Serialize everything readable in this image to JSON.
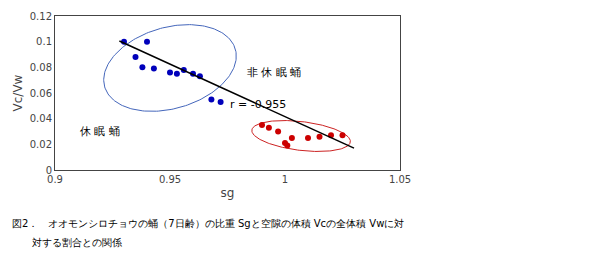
{
  "chart_data": {
    "type": "scatter",
    "xlabel": "sg",
    "ylabel": "Vc/Vw",
    "series": [
      {
        "type": "scatter",
        "color": "#0000bb",
        "x": [
          0.93,
          0.94,
          0.935,
          0.938,
          0.943,
          0.95,
          0.953,
          0.956,
          0.96,
          0.963,
          0.968,
          0.972
        ],
        "values": [
          0.1,
          0.1,
          0.088,
          0.08,
          0.079,
          0.076,
          0.075,
          0.078,
          0.075,
          0.073,
          0.055,
          0.053
        ]
      },
      {
        "type": "scatter",
        "color": "#cc0000",
        "x": [
          0.99,
          0.993,
          0.997,
          1.0,
          1.001,
          1.003,
          1.01,
          1.015,
          1.02,
          1.025
        ],
        "values": [
          0.035,
          0.033,
          0.03,
          0.021,
          0.019,
          0.025,
          0.025,
          0.026,
          0.027,
          0.027
        ]
      },
      {
        "type": "line",
        "color": "#000000",
        "x": [
          0.928,
          1.03
        ],
        "values": [
          0.1005,
          0.017
        ]
      }
    ],
    "ellipses": [
      {
        "color": "#4466bb",
        "center_x": 0.95,
        "center_y": 0.0795,
        "width": 0.052,
        "height": 0.072,
        "angle": -30
      },
      {
        "color": "#cc2222",
        "center_x": 1.007,
        "center_y": 0.0265,
        "width": 0.044,
        "height": 0.022,
        "angle": -15
      }
    ],
    "annotations": [
      "非 休 眠 蛹",
      "休 眠 蛹",
      "r = -0.955"
    ],
    "caption": [
      "図2．　オオモンシロチョウの蛹（7日齢）の比重 Sgと空隙の体積 Vcの全体積 Vwに対",
      "　　対する割合との関係"
    ],
    "xlim": [
      0.9,
      1.05
    ],
    "ylim": [
      0,
      0.12
    ],
    "xticks": [
      0.9,
      0.95,
      1,
      1.05
    ],
    "yticks": [
      0,
      0.02,
      0.04,
      0.06,
      0.08,
      0.1,
      0.12
    ],
    "grid": false
  }
}
